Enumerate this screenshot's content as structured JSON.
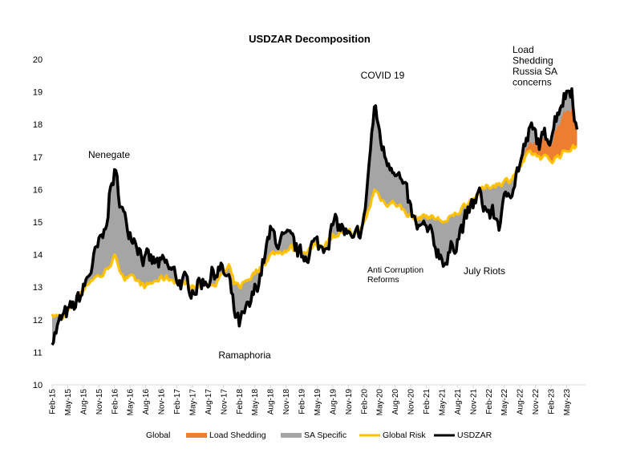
{
  "chart_data": {
    "type": "area",
    "title": "USDZAR Decomposition",
    "xlabel": "",
    "ylabel": "",
    "ylim": [
      10,
      20
    ],
    "yticks": [
      10,
      11,
      12,
      13,
      14,
      15,
      16,
      17,
      18,
      19,
      20
    ],
    "grid": false,
    "legend_position": "bottom",
    "x_tick_labels": [
      "Feb-15",
      "May-15",
      "Aug-15",
      "Nov-15",
      "Feb-16",
      "May-16",
      "Aug-16",
      "Nov-16",
      "Feb-17",
      "May-17",
      "Aug-17",
      "Nov-17",
      "Feb-18",
      "May-18",
      "Aug-18",
      "Nov-18",
      "Feb-19",
      "May-19",
      "Aug-19",
      "Nov-19",
      "Feb-20",
      "May-20",
      "Aug-20",
      "Nov-20",
      "Feb-21",
      "May-21",
      "Aug-21",
      "Nov-21",
      "Feb-22",
      "May-22",
      "Aug-22",
      "Nov-22",
      "Feb-23",
      "May-23"
    ],
    "x": [
      "2015-02",
      "2015-04",
      "2015-06",
      "2015-08",
      "2015-10",
      "2015-12",
      "2016-01",
      "2016-02",
      "2016-04",
      "2016-06",
      "2016-08",
      "2016-10",
      "2016-12",
      "2017-02",
      "2017-04",
      "2017-06",
      "2017-08",
      "2017-10",
      "2017-12",
      "2018-01",
      "2018-02",
      "2018-04",
      "2018-06",
      "2018-08",
      "2018-10",
      "2018-12",
      "2019-02",
      "2019-04",
      "2019-06",
      "2019-08",
      "2019-10",
      "2019-12",
      "2020-02",
      "2020-03",
      "2020-04",
      "2020-06",
      "2020-08",
      "2020-10",
      "2020-12",
      "2021-02",
      "2021-04",
      "2021-06",
      "2021-08",
      "2021-10",
      "2021-12",
      "2022-02",
      "2022-04",
      "2022-06",
      "2022-08",
      "2022-10",
      "2022-12",
      "2023-02",
      "2023-04",
      "2023-06",
      "2023-07"
    ],
    "series": [
      {
        "name": "USDZAR",
        "kind": "line",
        "color": "#000000",
        "values": [
          11.5,
          12.0,
          12.3,
          12.9,
          13.8,
          14.6,
          15.8,
          16.5,
          15.0,
          14.6,
          13.8,
          13.7,
          13.6,
          13.3,
          13.0,
          13.1,
          13.3,
          13.6,
          13.2,
          12.2,
          11.8,
          12.3,
          13.4,
          14.6,
          14.4,
          14.3,
          13.9,
          14.3,
          14.2,
          14.9,
          14.8,
          14.2,
          15.0,
          16.8,
          18.5,
          17.0,
          16.8,
          15.8,
          14.8,
          14.7,
          14.2,
          13.8,
          14.6,
          15.2,
          15.8,
          15.3,
          15.0,
          16.0,
          16.8,
          17.8,
          17.4,
          17.8,
          18.8,
          19.2,
          17.8
        ]
      },
      {
        "name": "Global Risk",
        "kind": "line",
        "color": "#FFC000",
        "values": [
          12.1,
          12.1,
          12.4,
          13.0,
          13.3,
          13.4,
          13.7,
          13.9,
          13.3,
          13.2,
          13.0,
          13.2,
          13.3,
          13.2,
          13.1,
          13.0,
          13.1,
          13.2,
          13.6,
          13.1,
          13.0,
          13.3,
          13.6,
          14.0,
          14.1,
          14.2,
          14.1,
          14.2,
          14.3,
          14.6,
          14.7,
          14.6,
          14.9,
          15.4,
          16.0,
          15.6,
          15.6,
          15.3,
          15.1,
          15.2,
          15.1,
          15.0,
          15.3,
          15.6,
          15.9,
          16.1,
          16.2,
          16.3,
          16.7,
          17.1,
          17.0,
          16.9,
          17.1,
          17.3,
          17.3
        ]
      },
      {
        "name": "Load Shedding",
        "kind": "area",
        "color": "#ED7D31",
        "values": [
          0,
          0,
          0,
          0,
          0,
          0,
          0,
          0,
          0,
          0,
          0,
          0,
          0,
          0,
          0,
          0,
          0,
          0,
          0,
          0,
          0,
          0,
          0,
          0,
          0,
          0,
          0,
          0,
          0,
          0,
          0,
          0,
          0,
          0,
          0,
          0,
          0,
          0,
          0,
          0,
          0,
          0,
          0,
          0,
          0,
          0,
          0,
          0,
          0,
          0.2,
          0.4,
          0.6,
          1.2,
          1.3,
          0.5
        ]
      },
      {
        "name": "SA Specific",
        "kind": "area",
        "color": "#A5A5A5",
        "note": "Fill between Global Risk (plus Load Shedding) and USDZAR"
      },
      {
        "name": "Global",
        "kind": "legend-only",
        "color": "#FFFFFF"
      }
    ],
    "annotations": [
      {
        "text": "Nenegate",
        "date": "2016-01",
        "value": 17.2
      },
      {
        "text": "Ramaphoria",
        "date": "2018-02",
        "value": 10.8
      },
      {
        "text": "COVID 19",
        "date": "2020-04",
        "value": 19.5
      },
      {
        "text": "Anti Corruption\nReforms",
        "date": "2020-02",
        "value": 13.5
      },
      {
        "text": "July Riots",
        "date": "2021-07",
        "value": 13.5
      },
      {
        "text": "Load\nShedding\nRussia SA\nconcerns",
        "date": "2022-10",
        "value": 20.3
      }
    ]
  },
  "legend": [
    {
      "label": "Global",
      "swatch": "none",
      "color": "#FFFFFF"
    },
    {
      "label": "Load Shedding",
      "swatch": "box",
      "color": "#ED7D31"
    },
    {
      "label": "SA Specific",
      "swatch": "box",
      "color": "#A5A5A5"
    },
    {
      "label": "Global Risk",
      "swatch": "line",
      "color": "#FFC000"
    },
    {
      "label": "USDZAR",
      "swatch": "line",
      "color": "#000000"
    }
  ]
}
